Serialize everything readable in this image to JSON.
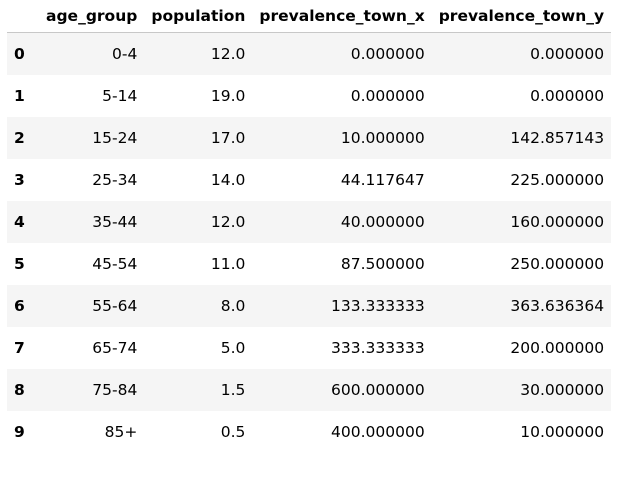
{
  "table": {
    "index_header": "",
    "columns": [
      "age_group",
      "population",
      "prevalence_town_x",
      "prevalence_town_y"
    ],
    "rows": [
      {
        "index": "0",
        "age_group": "0-4",
        "population": "12.0",
        "prevalence_town_x": "0.000000",
        "prevalence_town_y": "0.000000"
      },
      {
        "index": "1",
        "age_group": "5-14",
        "population": "19.0",
        "prevalence_town_x": "0.000000",
        "prevalence_town_y": "0.000000"
      },
      {
        "index": "2",
        "age_group": "15-24",
        "population": "17.0",
        "prevalence_town_x": "10.000000",
        "prevalence_town_y": "142.857143"
      },
      {
        "index": "3",
        "age_group": "25-34",
        "population": "14.0",
        "prevalence_town_x": "44.117647",
        "prevalence_town_y": "225.000000"
      },
      {
        "index": "4",
        "age_group": "35-44",
        "population": "12.0",
        "prevalence_town_x": "40.000000",
        "prevalence_town_y": "160.000000"
      },
      {
        "index": "5",
        "age_group": "45-54",
        "population": "11.0",
        "prevalence_town_x": "87.500000",
        "prevalence_town_y": "250.000000"
      },
      {
        "index": "6",
        "age_group": "55-64",
        "population": "8.0",
        "prevalence_town_x": "133.333333",
        "prevalence_town_y": "363.636364"
      },
      {
        "index": "7",
        "age_group": "65-74",
        "population": "5.0",
        "prevalence_town_x": "333.333333",
        "prevalence_town_y": "200.000000"
      },
      {
        "index": "8",
        "age_group": "75-84",
        "population": "1.5",
        "prevalence_town_x": "600.000000",
        "prevalence_town_y": "30.000000"
      },
      {
        "index": "9",
        "age_group": "85+",
        "population": "0.5",
        "prevalence_town_x": "400.000000",
        "prevalence_town_y": "10.000000"
      }
    ]
  }
}
